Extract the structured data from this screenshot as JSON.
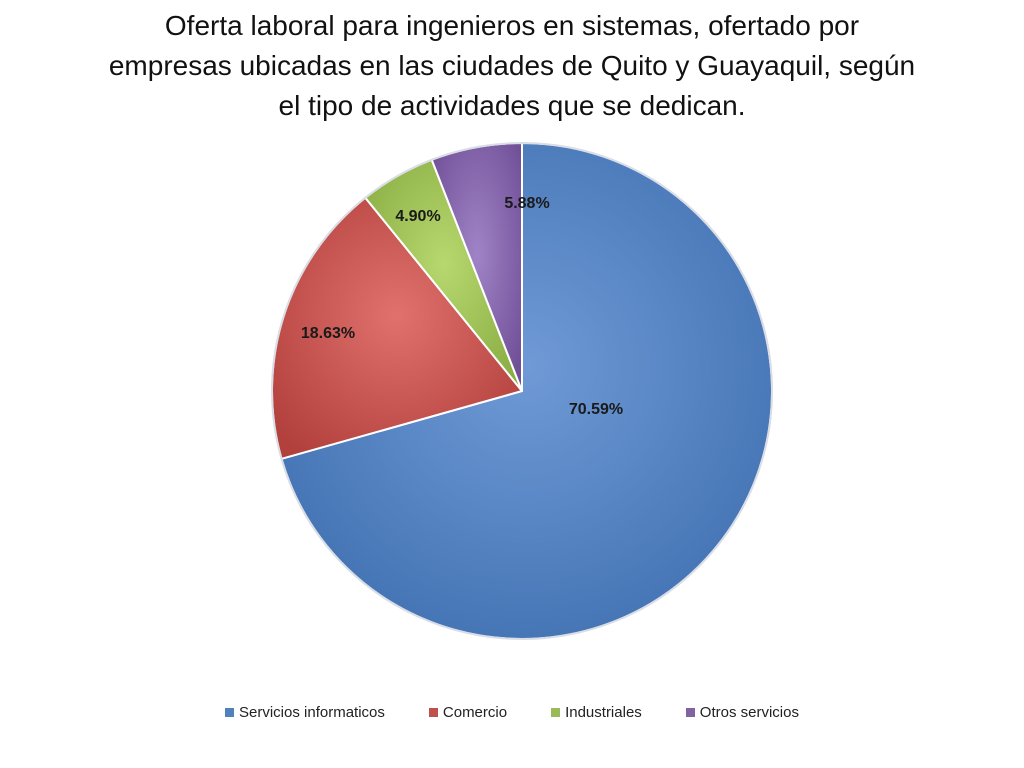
{
  "title_lines": [
    "Oferta laboral para ingenieros en sistemas, ofertado por",
    "empresas ubicadas en las ciudades de Quito y Guayaquil, según",
    "el tipo de actividades que se dedican."
  ],
  "chart_data": {
    "type": "pie",
    "categories": [
      "Servicios informaticos",
      "Comercio",
      "Industriales",
      "Otros servicios"
    ],
    "values": [
      70.59,
      18.63,
      4.9,
      5.88
    ],
    "labels": [
      "70.59%",
      "18.63%",
      "4.90%",
      "5.88%"
    ],
    "colors": [
      "#4f81bd",
      "#c0504d",
      "#9bbb59",
      "#8064a2"
    ],
    "legend_position": "bottom",
    "start": "12 o'clock",
    "direction": "clockwise"
  }
}
